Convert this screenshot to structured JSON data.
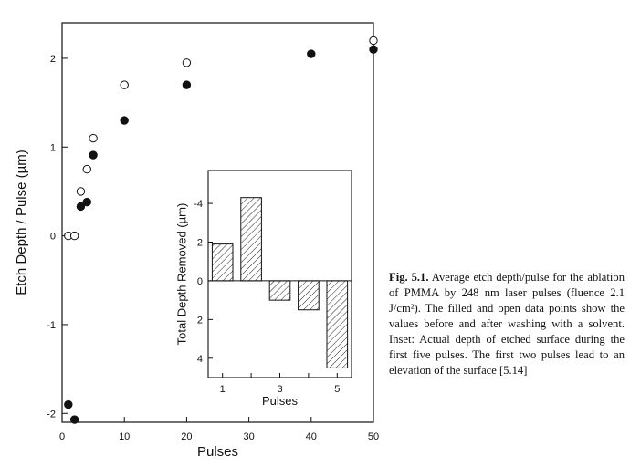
{
  "chart_data": [
    {
      "type": "scatter",
      "xlabel": "Pulses",
      "ylabel": "Etch Depth / Pulse (µm)",
      "xlim": [
        0,
        50
      ],
      "ylim": [
        -2.1,
        2.4
      ],
      "xticks": [
        "0",
        "10",
        "20",
        "30",
        "40",
        "50"
      ],
      "yticks": [
        "-2",
        "-1",
        "0",
        "1",
        "2"
      ],
      "grid": false,
      "series": [
        {
          "marker": "filled",
          "x": [
            1,
            2,
            3,
            4,
            5,
            10,
            20,
            40,
            50
          ],
          "y": [
            -1.9,
            -2.07,
            0.33,
            0.38,
            0.91,
            1.3,
            1.7,
            2.05,
            2.1
          ]
        },
        {
          "marker": "open",
          "x": [
            1,
            2,
            3,
            4,
            5,
            10,
            20,
            50
          ],
          "y": [
            0.0,
            0.0,
            0.5,
            0.75,
            1.1,
            1.7,
            1.95,
            2.2
          ]
        }
      ]
    },
    {
      "type": "bar",
      "inset": true,
      "xlabel": "Pulses",
      "ylabel": "Total Depth Removed (µm)",
      "categories": [
        "1",
        "2",
        "3",
        "4",
        "5"
      ],
      "values": [
        -1.9,
        -4.3,
        1.0,
        1.5,
        4.5
      ],
      "ylim": [
        -5.7,
        5.0
      ],
      "y_inverted": true,
      "xticks": [
        "1",
        "3",
        "5"
      ],
      "yticks": [
        "-4",
        "-2",
        "0",
        "2",
        "4"
      ],
      "bar_fill": "hatched"
    }
  ],
  "caption": {
    "lead": "Fig. 5.1.",
    "text": "Average etch depth/pulse for the ablation of PMMA by 248 nm laser pulses (fluence 2.1 J/cm²). The filled and open data points show the values before and after washing with a solvent. Inset: Actual depth of etched surface during the first five pulses. The first two pulses lead to an elevation of the surface [5.14]"
  }
}
